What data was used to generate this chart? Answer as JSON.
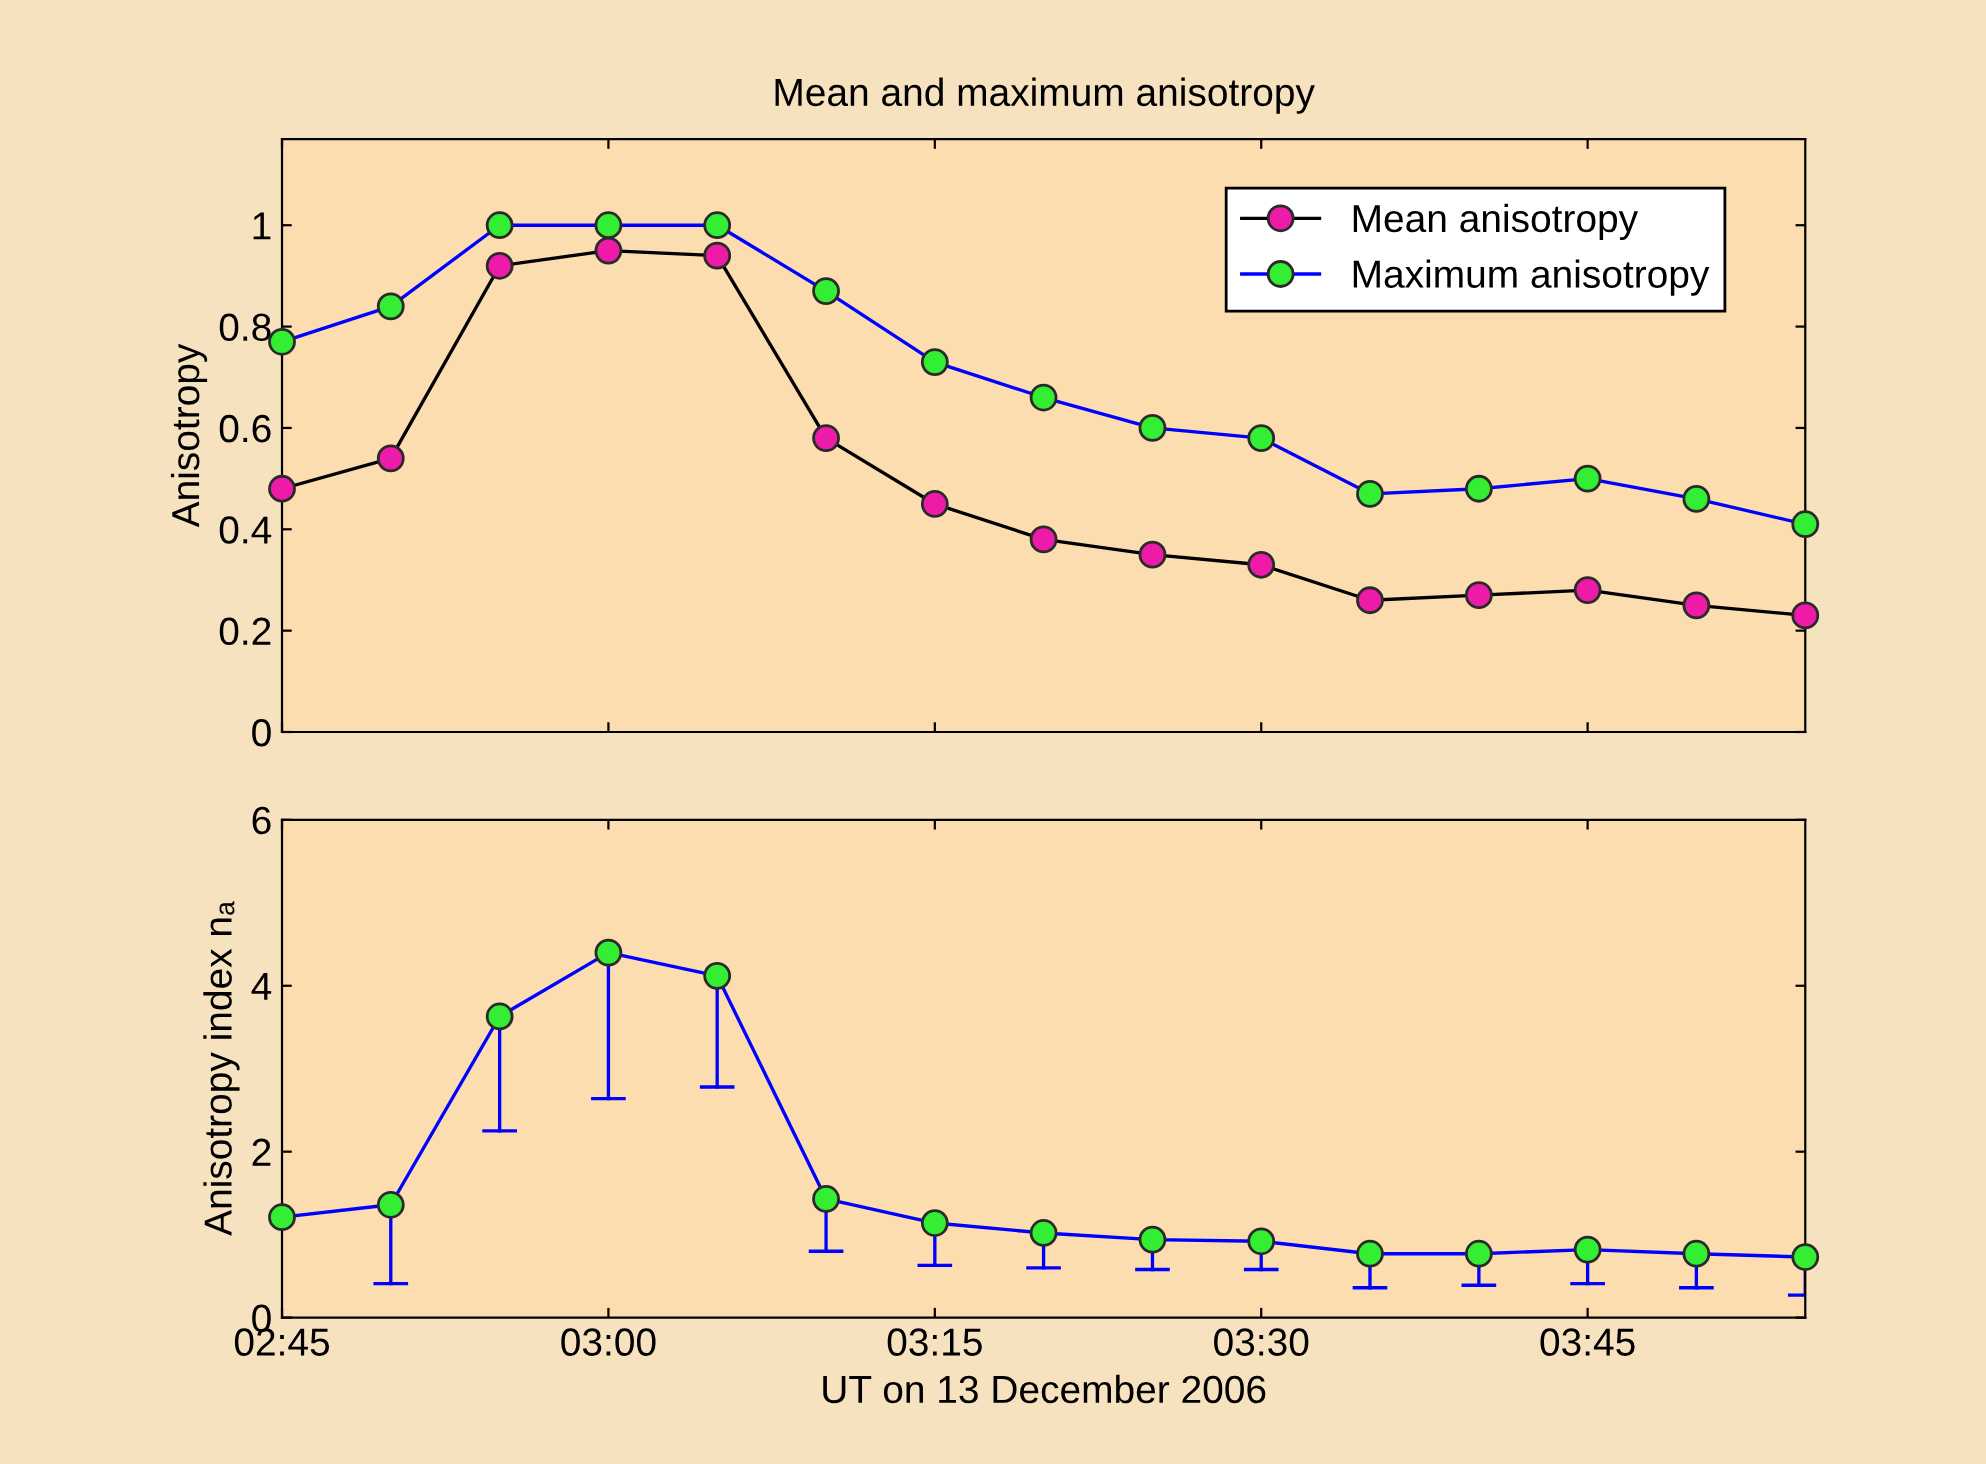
{
  "chart_data": [
    {
      "type": "line",
      "title": "Mean and maximum anisotropy",
      "ylabel": "Anisotropy",
      "x": [
        2.75,
        2.8333,
        2.9167,
        3.0,
        3.0833,
        3.1667,
        3.25,
        3.3333,
        3.4167,
        3.5,
        3.5833,
        3.6667,
        3.75,
        3.8333,
        3.9167
      ],
      "series": [
        {
          "name": "Mean anisotropy",
          "color": "#000000",
          "values": [
            0.48,
            0.54,
            0.92,
            0.95,
            0.94,
            0.58,
            0.45,
            0.38,
            0.35,
            0.33,
            0.26,
            0.27,
            0.28,
            0.25,
            0.23
          ]
        },
        {
          "name": "Maximum anisotropy",
          "color": "#0000ff",
          "values": [
            0.77,
            0.84,
            1.0,
            1.0,
            1.0,
            0.87,
            0.73,
            0.66,
            0.6,
            0.58,
            0.47,
            0.48,
            0.5,
            0.46,
            0.41
          ]
        }
      ],
      "xlim": [
        2.75,
        3.9167
      ],
      "xticks": [
        {
          "value": 2.75,
          "label": null
        },
        {
          "value": 3.0,
          "label": null
        },
        {
          "value": 3.25,
          "label": null
        },
        {
          "value": 3.5,
          "label": null
        },
        {
          "value": 3.75,
          "label": null
        }
      ],
      "ylim": [
        0,
        1.17
      ],
      "yticks": [
        0,
        0.2,
        0.4,
        0.6,
        0.8,
        1
      ],
      "legend": "top right",
      "marker": "circle",
      "tick_labels": "y",
      "grid": false
    },
    {
      "type": "line",
      "xlabel": "UT on 13 December 2006",
      "ylabel": "Anisotropy index nₐ",
      "x": [
        2.75,
        2.8333,
        2.9167,
        3.0,
        3.0833,
        3.1667,
        3.25,
        3.3333,
        3.4167,
        3.5,
        3.5833,
        3.6667,
        3.75,
        3.8333,
        3.9167
      ],
      "series": [
        {
          "color": "#0000ff",
          "values": [
            1.21,
            1.36,
            3.63,
            4.4,
            4.12,
            1.43,
            1.14,
            1.02,
            0.94,
            0.92,
            0.77,
            0.77,
            0.82,
            0.77,
            0.73
          ],
          "errors": [
            null,
            [
              0.41,
              1.36
            ],
            [
              2.25,
              3.63
            ],
            [
              2.64,
              4.4
            ],
            [
              2.78,
              4.12
            ],
            [
              0.8,
              1.43
            ],
            [
              0.63,
              1.14
            ],
            [
              0.6,
              1.02
            ],
            [
              0.58,
              0.94
            ],
            [
              0.58,
              0.92
            ],
            [
              0.36,
              0.77
            ],
            [
              0.39,
              0.77
            ],
            [
              0.41,
              0.82
            ],
            [
              0.36,
              0.77
            ],
            [
              0.27,
              0.73
            ]
          ]
        }
      ],
      "xlim": [
        2.75,
        3.9167
      ],
      "xticks": [
        {
          "value": 2.75,
          "label": "02:45"
        },
        {
          "value": 3.0,
          "label": "03:00"
        },
        {
          "value": 3.25,
          "label": "03:15"
        },
        {
          "value": 3.5,
          "label": "03:30"
        },
        {
          "value": 3.75,
          "label": "03:45"
        }
      ],
      "ylim": [
        0,
        6
      ],
      "yticks": [
        0,
        2,
        4,
        6
      ],
      "marker": "circle",
      "grid": false
    }
  ]
}
